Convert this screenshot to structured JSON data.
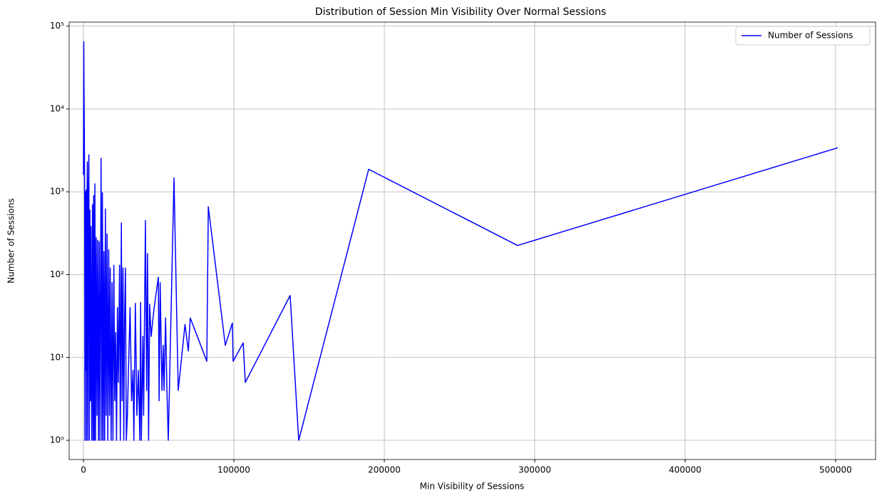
{
  "chart_data": {
    "type": "line",
    "title": "Distribution of Session Min Visibility Over Normal Sessions",
    "x_label": "Min Visibility of Sessions",
    "y_label": "Number of Sessions",
    "log_y": true,
    "grid": true,
    "legend": "upper right",
    "xlim": [
      -9500,
      526600
    ],
    "ylim": [
      0.586,
      112000
    ],
    "xticks": [
      0,
      100000,
      200000,
      300000,
      400000,
      500000
    ],
    "yticks": [
      {
        "value": 1,
        "label": "10⁰"
      },
      {
        "value": 10,
        "label": "10¹"
      },
      {
        "value": 100,
        "label": "10²"
      },
      {
        "value": 1000,
        "label": "10³"
      },
      {
        "value": 10000,
        "label": "10⁴"
      },
      {
        "value": 100000,
        "label": "10⁵"
      }
    ],
    "x": [
      0,
      200,
      400,
      600,
      800,
      1000,
      1200,
      1500,
      1800,
      2000,
      2300,
      2600,
      2900,
      3300,
      3600,
      3900,
      4300,
      4700,
      5000,
      5500,
      6000,
      6400,
      6800,
      7200,
      7600,
      8000,
      8500,
      9000,
      9500,
      10000,
      10500,
      11000,
      11700,
      12200,
      12600,
      13100,
      13600,
      14100,
      14600,
      15100,
      15700,
      16200,
      16800,
      17300,
      17800,
      18400,
      19000,
      19600,
      20200,
      20800,
      21400,
      22000,
      22600,
      23200,
      24000,
      24500,
      25200,
      25700,
      26300,
      26800,
      27300,
      27900,
      28500,
      29200,
      30000,
      31000,
      32000,
      33000,
      33500,
      34500,
      35500,
      36500,
      37500,
      38000,
      38500,
      39500,
      40000,
      40500,
      41200,
      42000,
      42600,
      43300,
      44000,
      45000,
      47000,
      48500,
      49800,
      50300,
      51000,
      52200,
      53000,
      53600,
      54600,
      55500,
      56400,
      60190,
      63000,
      67500,
      69700,
      71000,
      82000,
      83000,
      94300,
      99000,
      99500,
      106200,
      107600,
      137400,
      143100,
      189600,
      288600,
      501400
    ],
    "series": [
      {
        "name": "Number of Sessions",
        "color": "#0000ff",
        "values": [
          1600,
          65000,
          15000,
          4500,
          700,
          1,
          1000,
          7,
          1050,
          1,
          600,
          2300,
          1,
          900,
          2800,
          1,
          600,
          3,
          380,
          1,
          700,
          1,
          900,
          1,
          1250,
          1,
          280,
          2,
          260,
          1,
          250,
          1,
          2550,
          1,
          970,
          1,
          190,
          1,
          620,
          2,
          310,
          1,
          200,
          2,
          120,
          1,
          80,
          1,
          130,
          3,
          20,
          1,
          40,
          5,
          130,
          1,
          420,
          3,
          120,
          1,
          25,
          120,
          1,
          2,
          8,
          40,
          3,
          7,
          1,
          45,
          2,
          7,
          1,
          46,
          1,
          18,
          2,
          20,
          450,
          4,
          180,
          1,
          44,
          18,
          40,
          63,
          93,
          3,
          80,
          4,
          14,
          4,
          30,
          4,
          1,
          1470,
          4,
          25,
          12,
          30,
          9,
          660,
          14,
          26,
          9,
          15,
          5,
          56,
          1,
          1870,
          225,
          3400
        ]
      }
    ]
  }
}
